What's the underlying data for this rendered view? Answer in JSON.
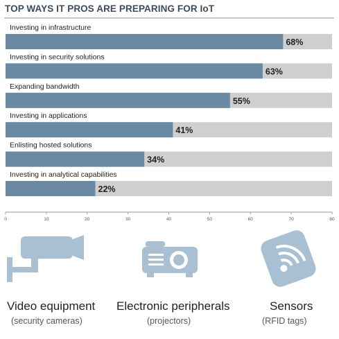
{
  "title": "TOP WAYS IT PROS ARE PREPARING FOR IoT",
  "chart_data": {
    "type": "bar",
    "orientation": "horizontal",
    "categories": [
      "Investing in infrastructure",
      "Investing in security solutions",
      "Expanding bandwidth",
      "Investing in applications",
      "Enlisting hosted solutions",
      "Investing in analytical capabilities"
    ],
    "values": [
      68,
      63,
      55,
      41,
      34,
      22
    ],
    "value_labels": [
      "68%",
      "63%",
      "55%",
      "41%",
      "34%",
      "22%"
    ],
    "xlim": [
      0,
      80
    ],
    "xticks": [
      "0",
      "10",
      "20",
      "30",
      "40",
      "50",
      "60",
      "70",
      "80"
    ],
    "xlabel": "",
    "ylabel": "",
    "grid": false,
    "colors": {
      "bar": "#6a8aa4",
      "track": "#cfcfcf"
    }
  },
  "devices": [
    {
      "name": "Video equipment",
      "sub": "(security cameras)",
      "icon": "security-camera-icon"
    },
    {
      "name": "Electronic peripherals",
      "sub": "(projectors)",
      "icon": "projector-icon"
    },
    {
      "name": "Sensors",
      "sub": "(RFID tags)",
      "icon": "rfid-tag-icon"
    }
  ],
  "colors": {
    "icon": "#a9c0d2",
    "icon_dark": "#6a8aa4"
  }
}
